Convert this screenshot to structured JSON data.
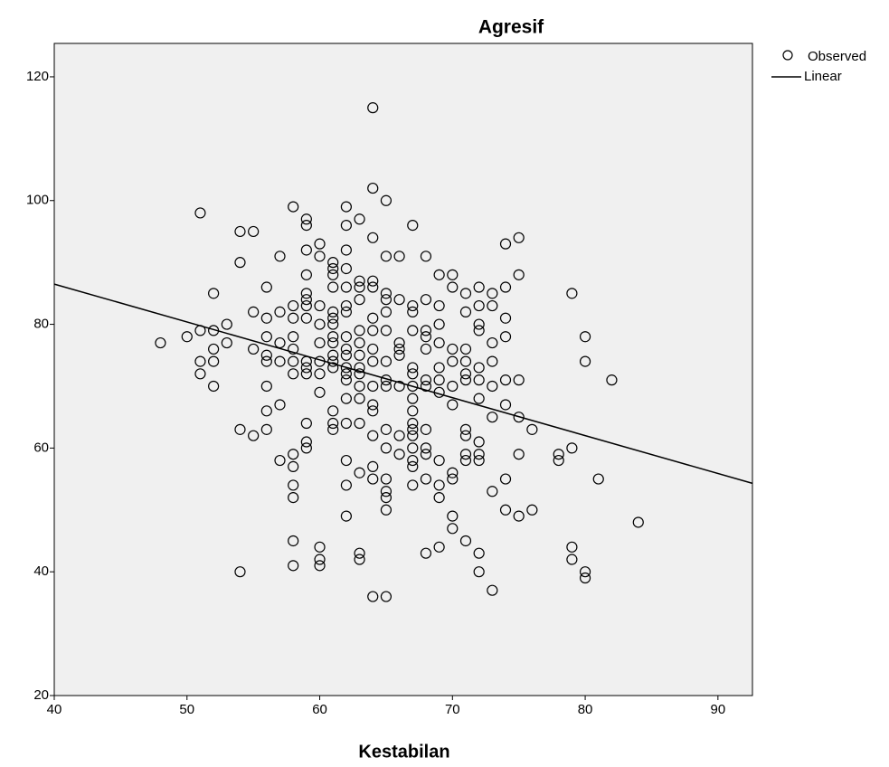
{
  "chart_data": {
    "type": "scatter",
    "title": "Agresif",
    "x_label": "Kestabilan",
    "xlim": [
      40,
      92.6
    ],
    "ylim": [
      20,
      125.4
    ],
    "xticks": [
      40,
      50,
      60,
      70,
      80,
      90
    ],
    "yticks": [
      20,
      40,
      60,
      80,
      100,
      120
    ],
    "background": "#f0f0f0",
    "series": [
      {
        "name": "Observed",
        "type": "scatter",
        "color": "#000000",
        "x": [
          48,
          50,
          51,
          51,
          51,
          51,
          52,
          52,
          52,
          52,
          52,
          53,
          53,
          54,
          54,
          54,
          54,
          55,
          55,
          55,
          55,
          56,
          56,
          56,
          56,
          56,
          56,
          56,
          56,
          57,
          57,
          57,
          57,
          57,
          57,
          58,
          58,
          58,
          58,
          58,
          58,
          58,
          58,
          58,
          58,
          58,
          58,
          58,
          59,
          59,
          59,
          59,
          59,
          59,
          59,
          59,
          59,
          59,
          59,
          59,
          59,
          59,
          60,
          60,
          60,
          60,
          60,
          60,
          60,
          60,
          60,
          60,
          60,
          61,
          61,
          61,
          61,
          61,
          61,
          61,
          61,
          61,
          61,
          61,
          61,
          61,
          61,
          61,
          62,
          62,
          62,
          62,
          62,
          62,
          62,
          62,
          62,
          62,
          62,
          62,
          62,
          62,
          62,
          62,
          62,
          62,
          63,
          63,
          63,
          63,
          63,
          63,
          63,
          63,
          63,
          63,
          63,
          63,
          63,
          63,
          63,
          64,
          64,
          64,
          64,
          64,
          64,
          64,
          64,
          64,
          64,
          64,
          64,
          64,
          64,
          64,
          64,
          65,
          65,
          65,
          65,
          65,
          65,
          65,
          65,
          65,
          65,
          65,
          65,
          65,
          65,
          65,
          65,
          66,
          66,
          66,
          66,
          66,
          66,
          66,
          66,
          67,
          67,
          67,
          67,
          67,
          67,
          67,
          67,
          67,
          67,
          67,
          67,
          67,
          67,
          67,
          67,
          68,
          68,
          68,
          68,
          68,
          68,
          68,
          68,
          68,
          68,
          68,
          68,
          69,
          69,
          69,
          69,
          69,
          69,
          69,
          69,
          69,
          69,
          69,
          70,
          70,
          70,
          70,
          70,
          70,
          70,
          70,
          70,
          70,
          71,
          71,
          71,
          71,
          71,
          71,
          71,
          71,
          71,
          71,
          71,
          72,
          72,
          72,
          72,
          72,
          72,
          72,
          72,
          72,
          72,
          72,
          72,
          73,
          73,
          73,
          73,
          73,
          73,
          73,
          73,
          74,
          74,
          74,
          74,
          74,
          74,
          74,
          74,
          75,
          75,
          75,
          75,
          75,
          75,
          76,
          76,
          78,
          78,
          79,
          79,
          79,
          79,
          80,
          80,
          80,
          80,
          81,
          82,
          84
        ],
        "y": [
          77,
          78,
          98,
          79,
          74,
          72,
          85,
          79,
          76,
          74,
          70,
          80,
          77,
          95,
          90,
          63,
          40,
          95,
          82,
          76,
          62,
          86,
          81,
          78,
          75,
          74,
          70,
          66,
          63,
          91,
          82,
          77,
          74,
          67,
          58,
          99,
          83,
          81,
          78,
          76,
          74,
          72,
          59,
          57,
          54,
          52,
          45,
          41,
          97,
          96,
          92,
          88,
          85,
          84,
          83,
          81,
          74,
          73,
          72,
          64,
          61,
          60,
          93,
          91,
          83,
          80,
          77,
          74,
          72,
          69,
          44,
          42,
          41,
          90,
          89,
          88,
          86,
          82,
          81,
          80,
          78,
          77,
          75,
          74,
          73,
          66,
          64,
          63,
          99,
          96,
          92,
          89,
          86,
          83,
          82,
          78,
          76,
          75,
          73,
          72,
          71,
          68,
          64,
          58,
          54,
          49,
          97,
          87,
          86,
          84,
          79,
          77,
          75,
          73,
          72,
          70,
          68,
          64,
          56,
          43,
          42,
          115,
          102,
          94,
          87,
          86,
          81,
          79,
          76,
          74,
          70,
          67,
          66,
          62,
          57,
          55,
          36,
          100,
          91,
          85,
          84,
          82,
          79,
          74,
          71,
          70,
          63,
          60,
          55,
          53,
          52,
          50,
          36,
          91,
          84,
          77,
          76,
          75,
          70,
          62,
          59,
          96,
          83,
          82,
          79,
          73,
          72,
          70,
          68,
          66,
          64,
          63,
          62,
          60,
          58,
          57,
          54,
          91,
          84,
          79,
          78,
          76,
          71,
          70,
          63,
          60,
          59,
          55,
          43,
          88,
          83,
          80,
          77,
          73,
          71,
          69,
          58,
          54,
          52,
          44,
          88,
          86,
          76,
          74,
          70,
          67,
          56,
          55,
          49,
          47,
          85,
          82,
          76,
          74,
          72,
          71,
          63,
          62,
          59,
          58,
          45,
          86,
          83,
          80,
          79,
          73,
          71,
          68,
          61,
          59,
          58,
          43,
          40,
          85,
          83,
          77,
          74,
          70,
          65,
          53,
          37,
          93,
          86,
          81,
          78,
          71,
          67,
          55,
          50,
          94,
          88,
          71,
          65,
          59,
          49,
          63,
          50,
          59,
          58,
          85,
          60,
          44,
          42,
          78,
          74,
          40,
          39,
          55,
          71,
          48
        ]
      },
      {
        "name": "Linear",
        "type": "line",
        "color": "#000000",
        "x": [
          40,
          92.6
        ],
        "y": [
          86.5,
          54.3
        ]
      }
    ]
  }
}
